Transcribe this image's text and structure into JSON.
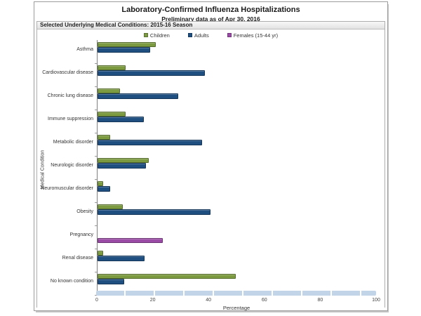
{
  "window": {
    "title": "Laboratory-Confirmed Influenza Hospitalizations",
    "subtitle": "Preliminary data as of Apr 30, 2016",
    "section_header": "Selected Underlying Medical Conditions: 2015-16 Season"
  },
  "chart_data": {
    "type": "bar",
    "orientation": "horizontal",
    "title": "Laboratory-Confirmed Influenza Hospitalizations",
    "subtitle": "Preliminary data as of Apr 30, 2016",
    "section_header": "Selected Underlying Medical Conditions: 2015-16 Season",
    "xlabel": "Percentage",
    "ylabel": "Medical Condition",
    "xlim": [
      0,
      100
    ],
    "xticks": [
      0,
      20,
      40,
      60,
      80,
      100
    ],
    "grid": false,
    "legend_position": "top-center",
    "axis_color": "#7f7f7f",
    "scrollbar_color": "#c1d4e8",
    "categories": [
      "Asthma",
      "Cardiovascular disease",
      "Chronic lung disease",
      "Immune suppression",
      "Metabolic disorder",
      "Neurologic disorder",
      "Neuromuscular disorder",
      "Obesity",
      "Pregnancy",
      "Renal disease",
      "No known condition"
    ],
    "series": [
      {
        "name": "Children",
        "color": "#7c9b40",
        "values": [
          21,
          10,
          8,
          10,
          4.5,
          18.5,
          2,
          9,
          null,
          2,
          49.5
        ]
      },
      {
        "name": "Adults",
        "color": "#1f4e80",
        "values": [
          19,
          38.5,
          29,
          16.5,
          37.5,
          17.5,
          4.5,
          40.5,
          null,
          17,
          9.5
        ]
      },
      {
        "name": "Females (15-44 yr)",
        "color": "#9a4ba5",
        "values": [
          null,
          null,
          null,
          null,
          null,
          null,
          null,
          null,
          23.5,
          null,
          null
        ]
      }
    ]
  }
}
